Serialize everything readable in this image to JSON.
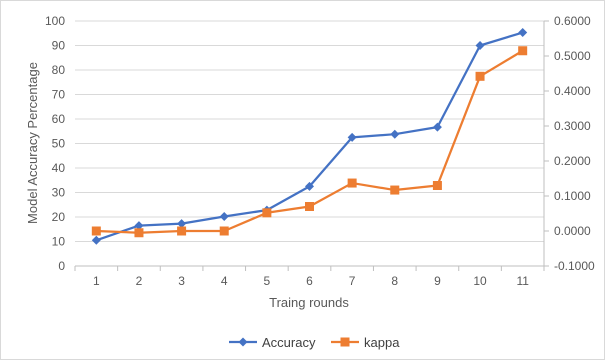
{
  "chart_data": {
    "type": "line",
    "categories": [
      "1",
      "2",
      "3",
      "4",
      "5",
      "6",
      "7",
      "8",
      "9",
      "10",
      "11"
    ],
    "xlabel": "Traing rounds",
    "ylabel": "Model Accuracy Percentage",
    "ylim": [
      0,
      100
    ],
    "y2lim": [
      -0.1,
      0.6
    ],
    "yticks": [
      "0",
      "10",
      "20",
      "30",
      "40",
      "50",
      "60",
      "70",
      "80",
      "90",
      "100"
    ],
    "y2ticks": [
      "-0.1000",
      "0.0000",
      "0.1000",
      "0.2000",
      "0.3000",
      "0.4000",
      "0.5000",
      "0.6000"
    ],
    "grid": true,
    "legend_position": "bottom",
    "series": [
      {
        "name": "Accuracy",
        "axis": "left",
        "color": "#4472c4",
        "marker": "diamond",
        "values": [
          10.5,
          16.5,
          17.3,
          20.2,
          22.8,
          32.5,
          52.5,
          53.8,
          56.7,
          90,
          95.3
        ]
      },
      {
        "name": "kappa",
        "axis": "right",
        "color": "#ed7d31",
        "marker": "square",
        "values": [
          0.0,
          -0.005,
          0.0,
          0.0,
          0.052,
          0.07,
          0.137,
          0.117,
          0.13,
          0.442,
          0.515
        ]
      }
    ]
  }
}
